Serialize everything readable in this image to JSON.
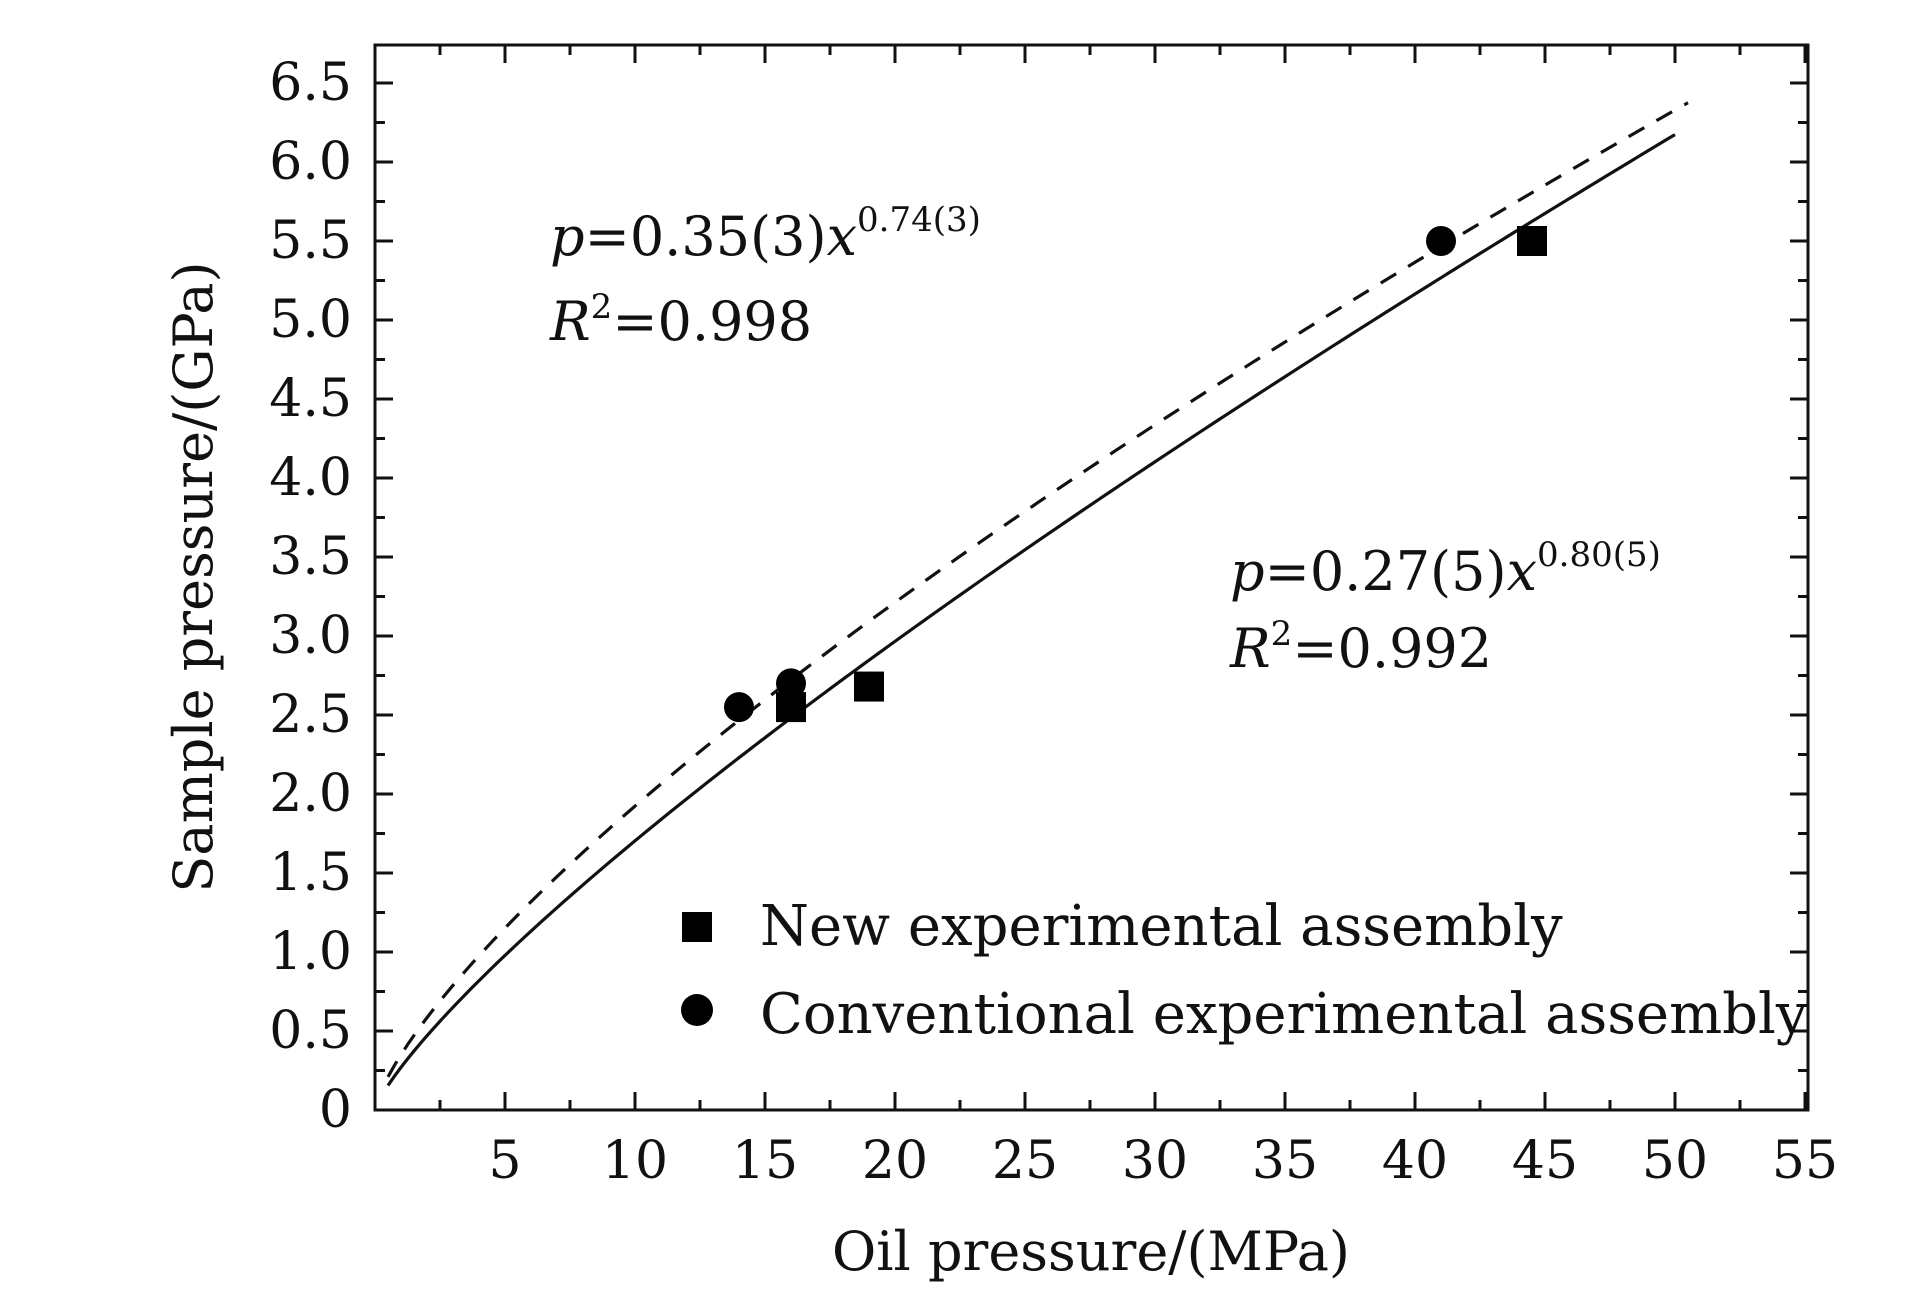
{
  "chart_data": {
    "type": "scatter",
    "xlabel": "Oil pressure/(MPa)",
    "ylabel": "Sample pressure/(GPa)",
    "xlim": [
      0,
      55
    ],
    "ylim": [
      0,
      6.7
    ],
    "x_ticks": [
      5,
      10,
      15,
      20,
      25,
      30,
      35,
      40,
      45,
      50,
      55
    ],
    "x_tick_labels": [
      "5",
      "10",
      "15",
      "20",
      "25",
      "30",
      "35",
      "40",
      "45",
      "50",
      "55"
    ],
    "y_ticks": [
      0,
      0.5,
      1.0,
      1.5,
      2.0,
      2.5,
      3.0,
      3.5,
      4.0,
      4.5,
      5.0,
      5.5,
      6.0,
      6.5
    ],
    "y_tick_labels": [
      "0",
      "0.5",
      "1.0",
      "1.5",
      "2.0",
      "2.5",
      "3.0",
      "3.5",
      "4.0",
      "4.5",
      "5.0",
      "5.5",
      "6.0",
      "6.5"
    ],
    "grid": false,
    "legend_position": "bottom-right",
    "series": [
      {
        "name": "New experimental assembly",
        "marker": "square",
        "points": [
          [
            16,
            2.55
          ],
          [
            19,
            2.68
          ],
          [
            44.5,
            5.5
          ]
        ],
        "fit": {
          "a": 0.27,
          "b": 0.8,
          "style": "solid",
          "x_range": [
            0.5,
            50
          ]
        }
      },
      {
        "name": "Conventional experimental assembly",
        "marker": "circle",
        "points": [
          [
            14,
            2.55
          ],
          [
            16,
            2.7
          ],
          [
            41,
            5.5
          ]
        ],
        "fit": {
          "a": 0.35,
          "b": 0.74,
          "style": "dashed",
          "x_range": [
            0.5,
            50.5
          ]
        }
      }
    ],
    "annotations": {
      "conventional": {
        "p": "p",
        "eq": "=0.35(3)",
        "x": "x",
        "exp": "0.74(3)",
        "R": "R",
        "r2": "2",
        "r2_val": "=0.998"
      },
      "new": {
        "p": "p",
        "eq": "=0.27(5)",
        "x": "x",
        "exp": "0.80(5)",
        "R": "R",
        "r2": "2",
        "r2_val": "=0.992"
      }
    },
    "colors": {
      "axis": "#111111",
      "marker": "#000000",
      "line": "#111111"
    }
  }
}
